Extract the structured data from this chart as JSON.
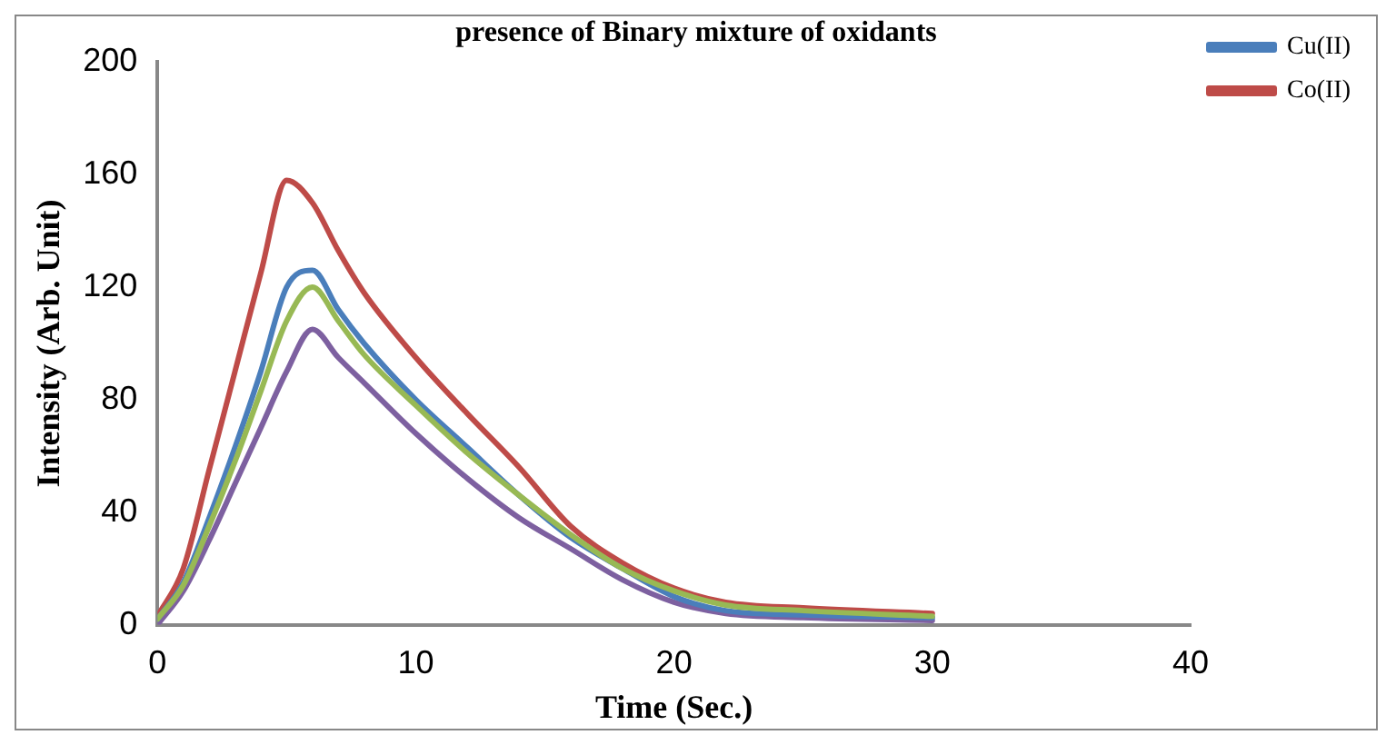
{
  "chart_data": {
    "type": "line",
    "title": "presence of Binary mixture of oxidants",
    "xlabel": "Time (Sec.)",
    "ylabel": "Intensity (Arb. Unit)",
    "xlim": [
      0,
      40
    ],
    "xticks": [
      0,
      10,
      20,
      30,
      40
    ],
    "ylim": [
      0,
      200
    ],
    "yticks": [
      0,
      40,
      80,
      120,
      160,
      200
    ],
    "grid": false,
    "legend": "top right",
    "marker": "none",
    "line_style": "solid",
    "series": [
      {
        "name": "Cu(II)",
        "color": "#4a7ebb",
        "x": [
          0,
          1,
          2,
          3,
          4,
          5,
          6,
          7,
          8,
          10,
          12,
          14,
          16,
          18,
          20,
          22,
          25,
          30
        ],
        "values": [
          2,
          15,
          38,
          63,
          90,
          120,
          126,
          112,
          100,
          80,
          63,
          46,
          31,
          20,
          10,
          5,
          3.5,
          2.5
        ]
      },
      {
        "name": "Co(II)",
        "color": "#be4b48",
        "x": [
          0,
          1,
          2,
          3,
          4,
          5,
          6,
          7,
          8,
          10,
          12,
          14,
          16,
          18,
          20,
          22,
          25,
          30
        ],
        "values": [
          3,
          20,
          55,
          90,
          125,
          158,
          150,
          133,
          118,
          95,
          75,
          56,
          35,
          22,
          13,
          8,
          6,
          4
        ]
      },
      {
        "color": "#98b954",
        "x": [
          0,
          1,
          2,
          3,
          4,
          5,
          6,
          7,
          8,
          10,
          12,
          14,
          16,
          18,
          20,
          22,
          25,
          30
        ],
        "values": [
          2,
          14,
          35,
          58,
          83,
          108,
          120,
          108,
          96,
          78,
          61,
          46,
          32,
          20,
          12,
          7,
          5,
          3
        ]
      },
      {
        "color": "#7d60a0",
        "x": [
          0,
          1,
          2,
          3,
          4,
          5,
          6,
          7,
          8,
          10,
          12,
          14,
          16,
          18,
          20,
          22,
          25,
          30
        ],
        "values": [
          0,
          12,
          30,
          50,
          70,
          90,
          105,
          95,
          86,
          68,
          52,
          38,
          27,
          16,
          8,
          4,
          2.5,
          1.5
        ]
      }
    ]
  }
}
